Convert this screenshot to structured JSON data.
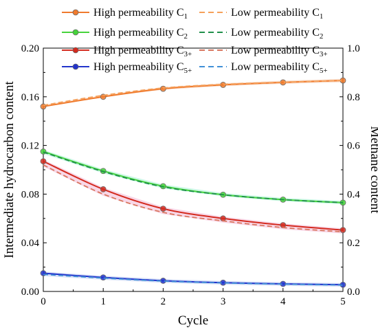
{
  "chart_data": {
    "type": "line",
    "xlabel": "Cycle",
    "ylabel": "Intermediate hydrocarbon content",
    "y2label": "Methane content",
    "xlim": [
      0,
      5
    ],
    "ylim": [
      0,
      0.2
    ],
    "y2lim": [
      0,
      1.0
    ],
    "x_ticks": [
      "0",
      "1",
      "2",
      "3",
      "4",
      "5"
    ],
    "y_ticks": [
      "0.00",
      "0.04",
      "0.08",
      "0.12",
      "0.16",
      "0.20"
    ],
    "y2_ticks": [
      "0.0",
      "0.2",
      "0.4",
      "0.6",
      "0.8",
      "1.0"
    ],
    "grid": false,
    "legend_position": "top",
    "x": [
      0,
      1,
      2,
      3,
      4,
      5
    ],
    "series": [
      {
        "name_main": "High permeability C",
        "name_sub": "1",
        "axis": "right",
        "style": "solid-marker",
        "color": "#f07a2c",
        "values": [
          0.76,
          0.8,
          0.833,
          0.849,
          0.859,
          0.867
        ]
      },
      {
        "name_main": "Low permeability C",
        "name_sub": "1",
        "axis": "right",
        "style": "dashed",
        "color": "#f5a05a",
        "values": [
          0.765,
          0.806,
          0.836,
          0.851,
          0.86,
          0.867
        ]
      },
      {
        "name_main": "High permeability C",
        "name_sub": "2",
        "axis": "left",
        "style": "solid-marker",
        "color": "#45d33a",
        "values": [
          0.115,
          0.099,
          0.0865,
          0.0795,
          0.0755,
          0.073
        ]
      },
      {
        "name_main": "Low permeability C",
        "name_sub": "2",
        "axis": "left",
        "style": "dashed",
        "color": "#1f8f4a",
        "values": [
          0.1145,
          0.0985,
          0.086,
          0.0795,
          0.0755,
          0.073
        ]
      },
      {
        "name_main": "High permeability C",
        "name_sub": "3+",
        "axis": "left",
        "style": "solid-marker",
        "color": "#d42a1e",
        "values": [
          0.107,
          0.084,
          0.068,
          0.06,
          0.0545,
          0.0505
        ]
      },
      {
        "name_main": "Low permeability C",
        "name_sub": "3+",
        "axis": "left",
        "style": "dashed",
        "color": "#d9765f",
        "values": [
          0.104,
          0.08,
          0.065,
          0.058,
          0.0525,
          0.049
        ]
      },
      {
        "name_main": "High permeability C",
        "name_sub": "5+",
        "axis": "left",
        "style": "solid-marker",
        "color": "#2233cc",
        "values": [
          0.015,
          0.0115,
          0.0088,
          0.0072,
          0.0062,
          0.0055
        ]
      },
      {
        "name_main": "Low permeability C",
        "name_sub": "5+",
        "axis": "left",
        "style": "dashed",
        "color": "#3f8fd6",
        "values": [
          0.014,
          0.011,
          0.0085,
          0.007,
          0.006,
          0.0052
        ]
      }
    ]
  }
}
